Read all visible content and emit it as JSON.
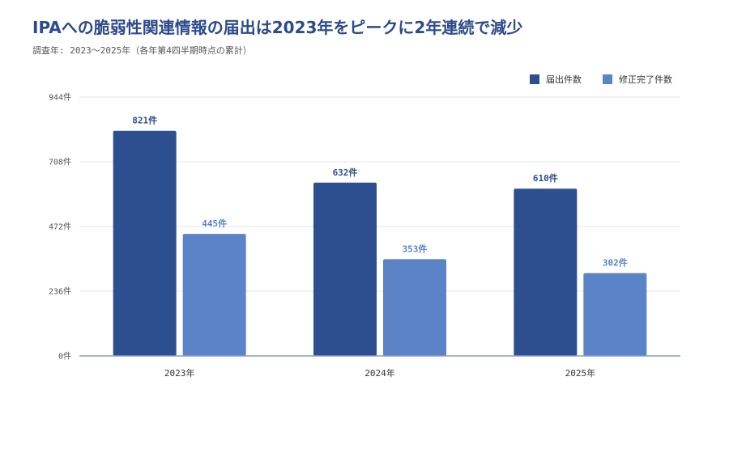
{
  "title": "IPAへの脆弱性関連情報の届出は2023年をピークに2年連続で減少",
  "subtitle": "調査年: 2023～2025年（各年第4四半期時点の累計）",
  "colors": {
    "series1": "#2e4f8f",
    "series2": "#5b84c8",
    "title": "#2c4a8c",
    "axis": "#8a9cc6",
    "grid": "#e6e6e6"
  },
  "chart_data": {
    "type": "bar",
    "categories": [
      "2023年",
      "2024年",
      "2025年"
    ],
    "series": [
      {
        "name": "届出件数",
        "values": [
          821,
          632,
          610
        ],
        "labels": [
          "821件",
          "632件",
          "610件"
        ]
      },
      {
        "name": "修正完了件数",
        "values": [
          445,
          353,
          302
        ],
        "labels": [
          "445件",
          "353件",
          "302件"
        ]
      }
    ],
    "ylim": [
      0,
      944
    ],
    "yticks": [
      0,
      236,
      472,
      708,
      944
    ],
    "ytick_labels": [
      "0件",
      "236件",
      "472件",
      "708件",
      "944件"
    ],
    "grid": true,
    "legend_position": "top-right"
  }
}
